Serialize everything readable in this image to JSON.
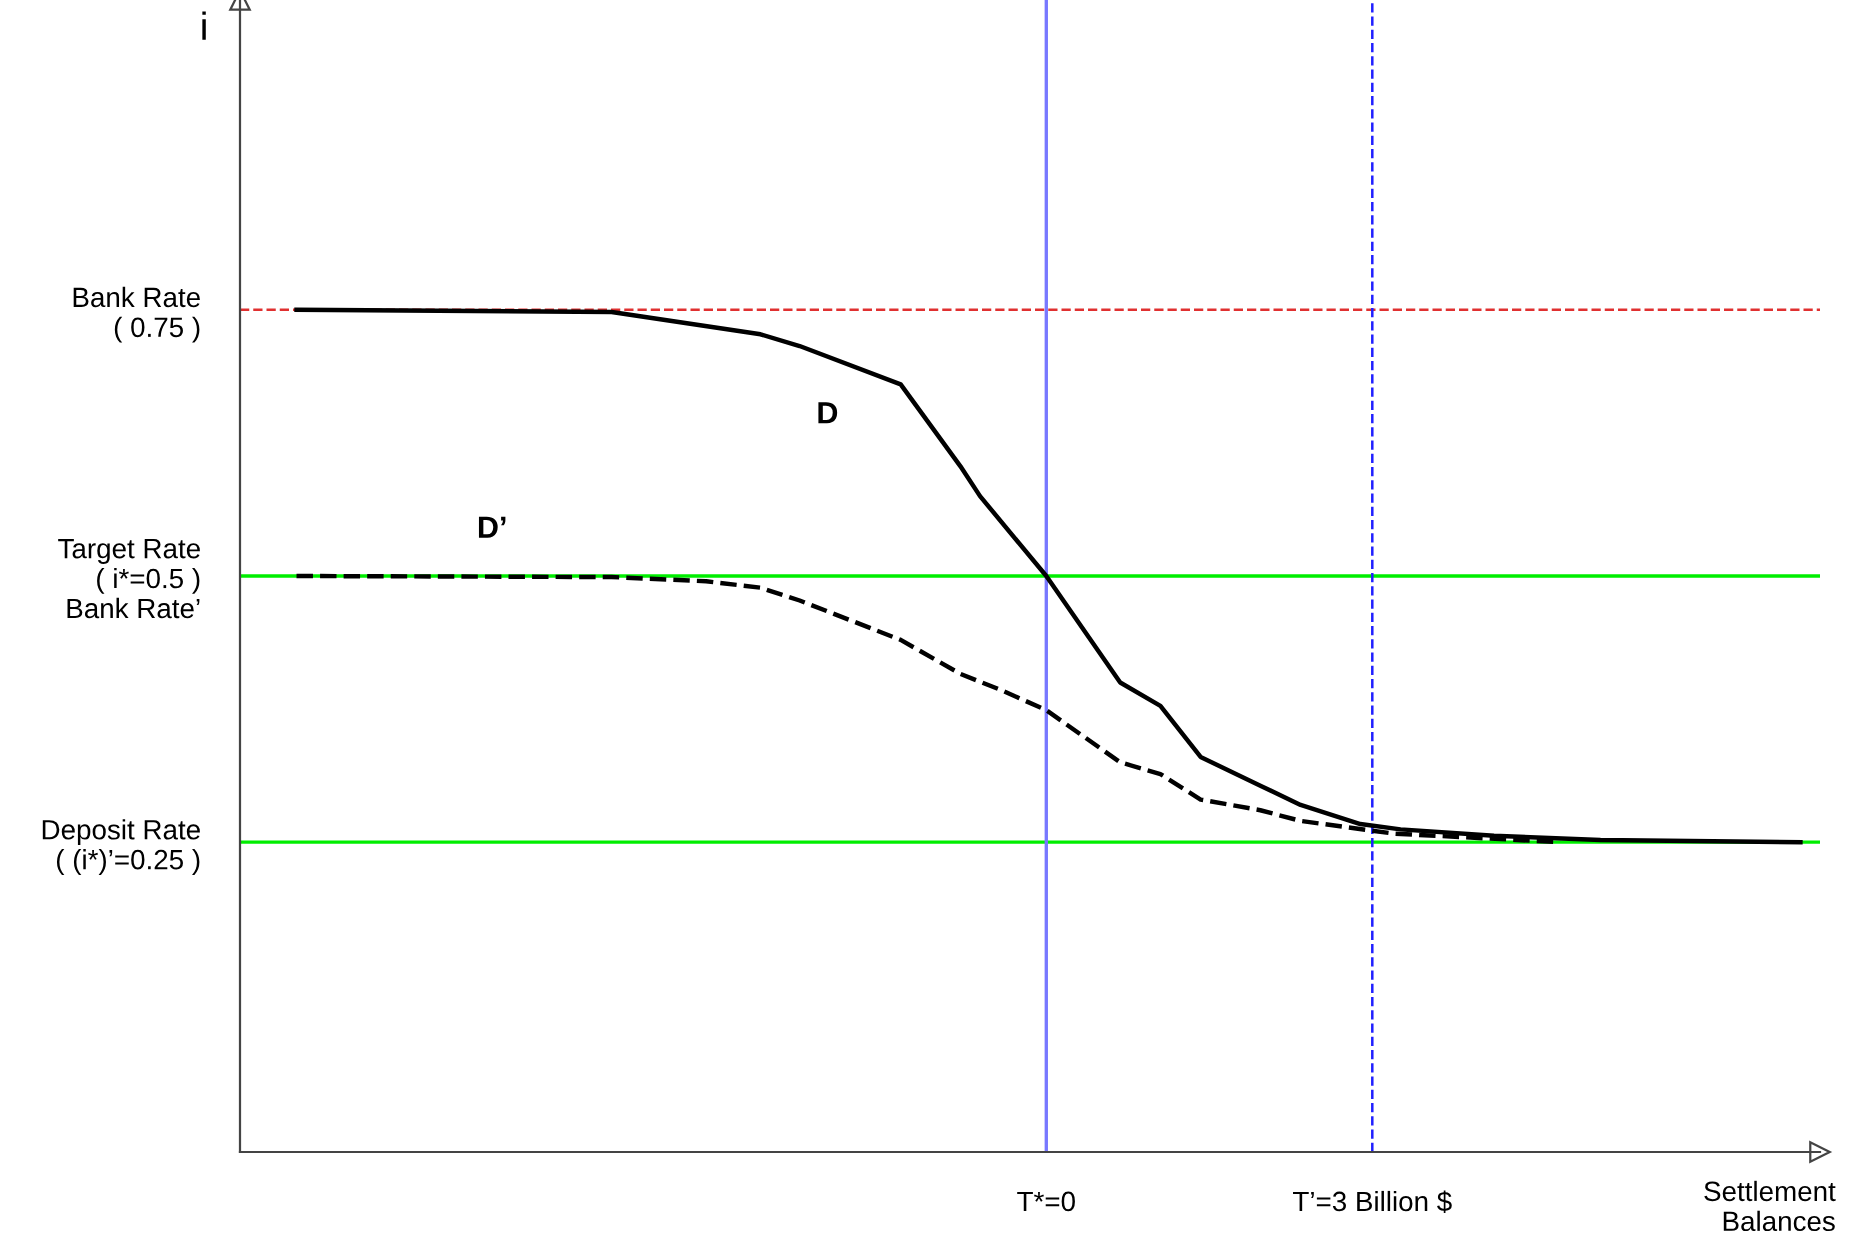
{
  "chart_data": {
    "type": "line",
    "xlabel": "Settlement\nBalances",
    "ylabel": "i",
    "xlim": [
      -7.42,
      7.12
    ],
    "ylim": [
      -0.041,
      1.041
    ],
    "xticks": [
      {
        "value": 0,
        "label": "T*=0"
      },
      {
        "value": 3,
        "label": "T’=3 Billion $"
      }
    ],
    "yticks": [
      {
        "value": 0.75,
        "label": "Bank Rate\n( 0.75 )"
      },
      {
        "value": 0.5,
        "label": "Target Rate\n( i*=0.5 )\nBank Rate’"
      },
      {
        "value": 0.25,
        "label": "Deposit Rate\n( (i*)’=0.25 )"
      }
    ],
    "series": [
      {
        "name": "D",
        "color": "#000000",
        "line_style": "solid",
        "x": [
          -6.9,
          -4,
          -2.63,
          -2.27,
          -1.34,
          -0.79,
          -0.61,
          0,
          0.68,
          1.05,
          1.42,
          1.97,
          2.34,
          2.89,
          3.26,
          4.12,
          5.1,
          6.94
        ],
        "values": [
          0.75,
          0.748,
          0.727,
          0.716,
          0.68,
          0.603,
          0.575,
          0.5,
          0.4,
          0.378,
          0.33,
          0.303,
          0.285,
          0.267,
          0.262,
          0.256,
          0.252,
          0.25
        ]
      },
      {
        "name": "D’",
        "color": "#000000",
        "line_style": "dashed",
        "x": [
          -6.9,
          -4,
          -3.13,
          -2.63,
          -2.27,
          -1.34,
          -0.79,
          -0.42,
          0,
          0.68,
          1.05,
          1.42,
          1.97,
          2.34,
          3.2,
          4.73
        ],
        "values": [
          0.5,
          0.499,
          0.495,
          0.489,
          0.477,
          0.44,
          0.408,
          0.393,
          0.374,
          0.325,
          0.314,
          0.29,
          0.28,
          0.27,
          0.258,
          0.25
        ]
      }
    ],
    "ref_lines": [
      {
        "axis": "y",
        "value": 0.75,
        "color": "#e03030",
        "line_style": "dashed"
      },
      {
        "axis": "y",
        "value": 0.5,
        "color": "#00ee00",
        "line_style": "solid"
      },
      {
        "axis": "y",
        "value": 0.25,
        "color": "#00ee00",
        "line_style": "solid"
      },
      {
        "axis": "x",
        "value": 0,
        "color": "#7878ff",
        "line_style": "solid"
      },
      {
        "axis": "x",
        "value": 3,
        "color": "#2020ff",
        "line_style": "dashed"
      }
    ],
    "grid": false,
    "legend": false,
    "marker": "none"
  }
}
